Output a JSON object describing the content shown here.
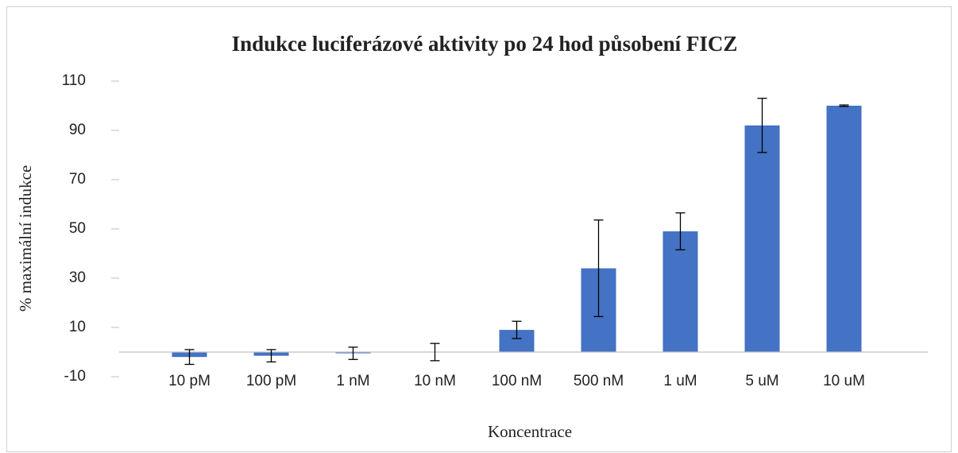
{
  "chart_data": {
    "type": "bar",
    "title": "Indukce luciferázové aktivity po 24 hod působení FICZ",
    "x_label": "Koncentrace",
    "y_label": "% maximální indukce",
    "categories": [
      "10 pM",
      "100 pM",
      "1 nM",
      "10 nM",
      "100 nM",
      "500 nM",
      "1 uM",
      "5 uM",
      "10 uM"
    ],
    "values": [
      -2,
      -1.5,
      -0.5,
      0,
      9,
      34,
      49,
      92,
      100
    ],
    "errors": [
      3,
      2.5,
      2.5,
      3.5,
      3.5,
      19.6,
      7.5,
      11,
      0.3
    ],
    "color": "#4472c4",
    "ylim": [
      -10,
      110
    ],
    "yticks": [
      -10,
      10,
      30,
      50,
      70,
      90,
      110
    ],
    "grid": false
  }
}
